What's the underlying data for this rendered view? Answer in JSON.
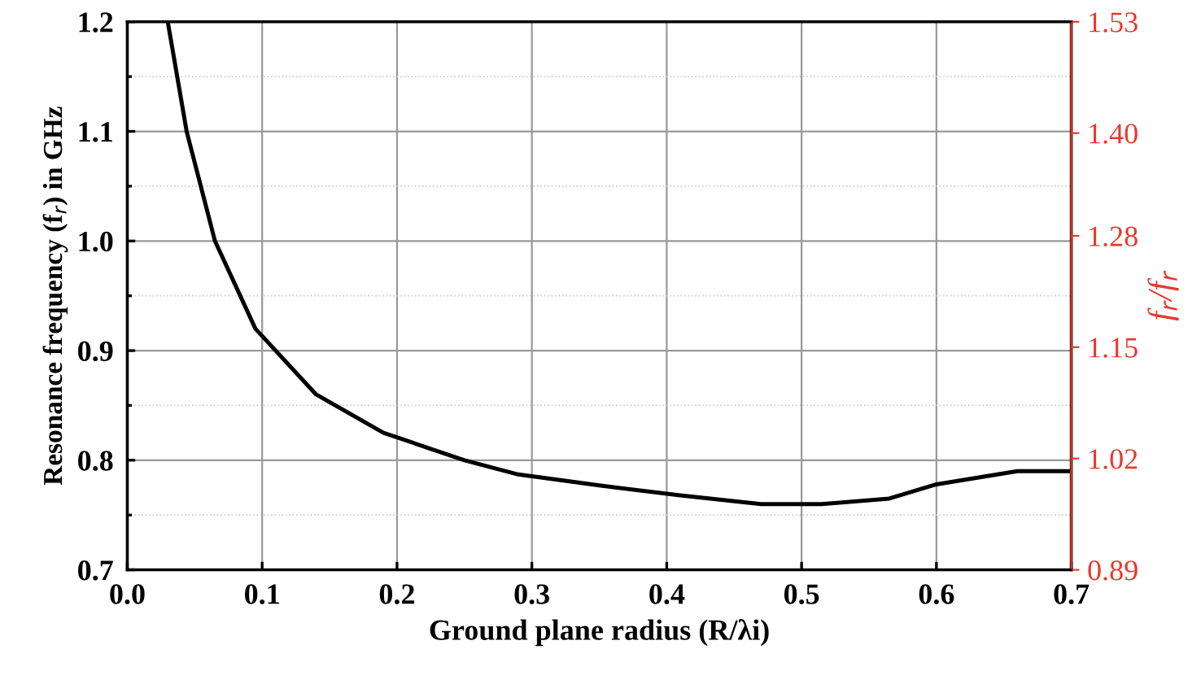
{
  "chart_data": {
    "type": "line",
    "xlabel": "Ground plane radius (R/λi)",
    "ylabel": "Resonance frequency (f$_{r}$) in GHz",
    "y2label": "f$_{r}$/f$_{r}$",
    "x": [
      0.03,
      0.044,
      0.065,
      0.095,
      0.14,
      0.19,
      0.25,
      0.29,
      0.35,
      0.41,
      0.47,
      0.515,
      0.565,
      0.6,
      0.66,
      0.7
    ],
    "series": [
      {
        "color": "#000000",
        "values": [
          1.2,
          1.1,
          1.0,
          0.92,
          0.86,
          0.825,
          0.8,
          0.787,
          0.777,
          0.768,
          0.76,
          0.76,
          0.765,
          0.778,
          0.79,
          0.79
        ]
      }
    ],
    "xlim": [
      0.0,
      0.7
    ],
    "xticks": [
      {
        "value": 0.0,
        "label": "0.0"
      },
      0.1,
      0.2,
      0.3,
      0.4,
      0.5,
      0.6,
      0.7
    ],
    "ylim": [
      0.7,
      1.2
    ],
    "yticks": [
      0.7,
      0.8,
      0.9,
      {
        "value": 1.0,
        "label": "1.0"
      },
      1.1,
      1.2
    ],
    "y2lim": [
      0.89,
      1.53
    ],
    "y2ticks": [
      0.89,
      1.02,
      1.15,
      1.28,
      {
        "value": 1.4,
        "label": "1.40"
      },
      1.53
    ],
    "grid": true,
    "marker": "none",
    "line_style": "solid"
  }
}
